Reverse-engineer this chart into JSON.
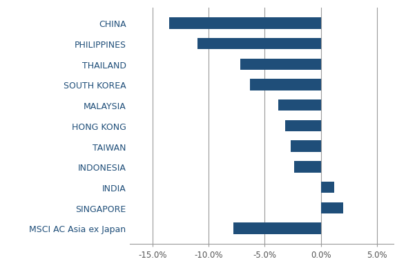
{
  "categories": [
    "CHINA",
    "PHILIPPINES",
    "THAILAND",
    "SOUTH KOREA",
    "MALAYSIA",
    "HONG KONG",
    "TAIWAN",
    "INDONESIA",
    "INDIA",
    "SINGAPORE",
    "MSCI AC Asia ex Japan"
  ],
  "values": [
    -13.5,
    -11.0,
    -7.2,
    -6.3,
    -3.8,
    -3.2,
    -2.7,
    -2.4,
    1.2,
    2.0,
    -7.8
  ],
  "bar_color": "#1f4e79",
  "xlim": [
    -17,
    6.5
  ],
  "xticks": [
    -15,
    -10,
    -5,
    0,
    5
  ],
  "xtick_labels": [
    "-15.0%",
    "-10.0%",
    "-5.0%",
    "0.0%",
    "5.0%"
  ],
  "background_color": "#ffffff",
  "grid_color": "#999999",
  "label_color": "#1f4e79",
  "bar_height": 0.55,
  "label_fontsize": 9.0,
  "xtick_fontsize": 8.5
}
